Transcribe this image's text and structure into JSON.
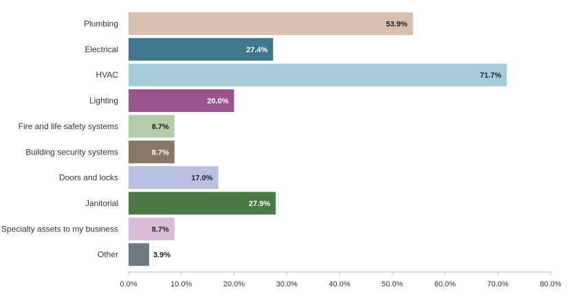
{
  "chart_data": {
    "type": "bar",
    "orientation": "horizontal",
    "title": "",
    "xlabel": "",
    "ylabel": "",
    "xlim": [
      0,
      80
    ],
    "ticks": [
      0,
      10,
      20,
      30,
      40,
      50,
      60,
      70,
      80
    ],
    "tick_labels": [
      "0.0%",
      "10.0%",
      "20.0%",
      "30.0%",
      "40.0%",
      "50.0%",
      "60.0%",
      "70.0%",
      "80.0%"
    ],
    "grid": false,
    "categories": [
      "Plumbing",
      "Electrical",
      "HVAC",
      "Lighting",
      "Fire and life safety systems",
      "Building security systems",
      "Doors and locks",
      "Janitorial",
      "Specialty assets to my business",
      "Other"
    ],
    "values": [
      53.9,
      27.4,
      71.7,
      20.0,
      8.7,
      8.7,
      17.0,
      27.9,
      8.7,
      3.9
    ],
    "value_labels": [
      "53.9%",
      "27.4%",
      "71.7%",
      "20.0%",
      "8.7%",
      "8.7%",
      "17.0%",
      "27.9%",
      "8.7%",
      "3.9%"
    ],
    "colors": [
      "#d9bfae",
      "#3d778c",
      "#a6ccd9",
      "#98558b",
      "#b3cba6",
      "#8a7665",
      "#b9c0e2",
      "#4a7a45",
      "#dbbcd8",
      "#6c7b81"
    ],
    "label_colors": [
      "#222222",
      "#ffffff",
      "#222222",
      "#ffffff",
      "#222222",
      "#ffffff",
      "#222222",
      "#ffffff",
      "#222222",
      "#222222"
    ]
  }
}
